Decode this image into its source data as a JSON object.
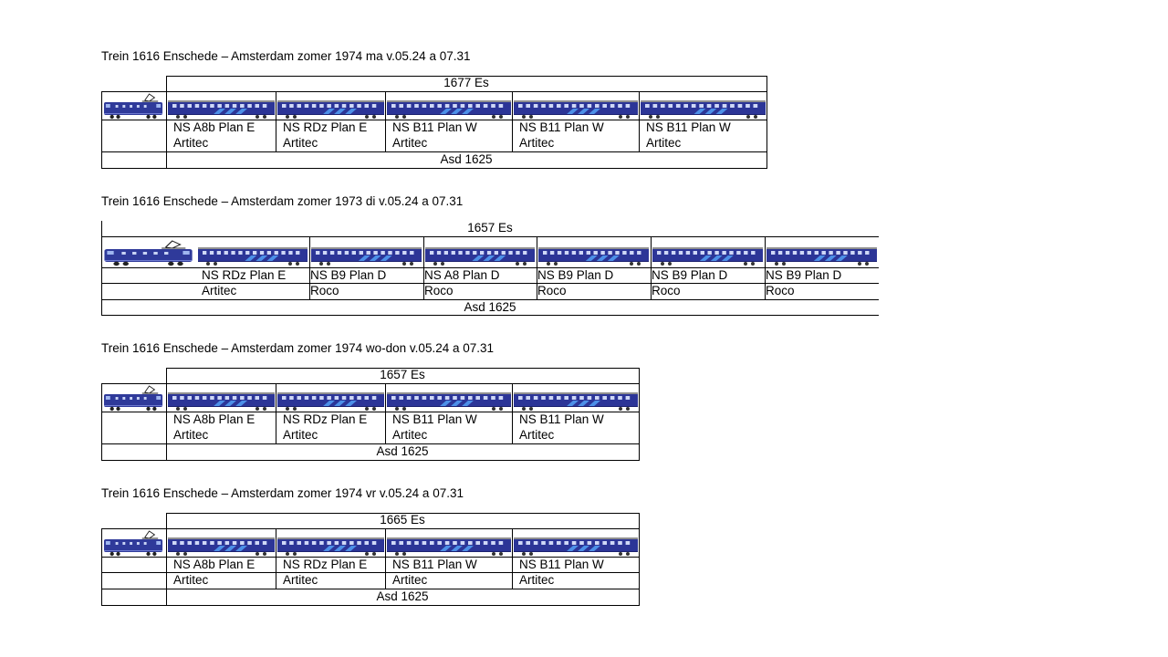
{
  "colors": {
    "loco_body": "#2f3a9a",
    "coach_body": "#2c3597",
    "coach_roof": "#8f8f8f",
    "stripe": "#4d90e8",
    "grid": "#000000"
  },
  "icons": {
    "locomotive": "electric-locomotive-icon",
    "coach": "passenger-coach-icon"
  },
  "consists": [
    {
      "title": "Trein 1616 Enschede – Amsterdam zomer 1974 ma v.05.24 a 07.31",
      "top_label": "1677 Es",
      "bottom_label": "Asd 1625",
      "vehicles": [
        {
          "line1": "NS A8b Plan E",
          "line2": "Artitec"
        },
        {
          "line1": "NS RDz Plan E",
          "line2": "Artitec"
        },
        {
          "line1": "NS B11 Plan W",
          "line2": "Artitec"
        },
        {
          "line1": "NS B11 Plan W",
          "line2": "Artitec"
        },
        {
          "line1": "NS B11 Plan W",
          "line2": "Artitec"
        }
      ]
    },
    {
      "title": "Trein 1616 Enschede – Amsterdam zomer 1973 di v.05.24 a 07.31",
      "top_label": "1657 Es",
      "bottom_label": "Asd 1625",
      "vehicles": [
        {
          "line1": "NS RDz Plan E",
          "line2": "Artitec"
        },
        {
          "line1": "NS B9 Plan D",
          "line2": "Roco"
        },
        {
          "line1": "NS A8 Plan D",
          "line2": "Roco"
        },
        {
          "line1": "NS B9 Plan D",
          "line2": "Roco"
        },
        {
          "line1": "NS B9 Plan D",
          "line2": "Roco"
        },
        {
          "line1": "NS B9 Plan D",
          "line2": "Roco"
        }
      ]
    },
    {
      "title": "Trein 1616 Enschede – Amsterdam zomer 1974 wo-don v.05.24 a 07.31",
      "top_label": "1657 Es",
      "bottom_label": "Asd 1625",
      "vehicles": [
        {
          "line1": "NS A8b Plan E",
          "line2": "Artitec"
        },
        {
          "line1": "NS RDz Plan E",
          "line2": "Artitec"
        },
        {
          "line1": "NS B11 Plan W",
          "line2": "Artitec"
        },
        {
          "line1": "NS B11 Plan W",
          "line2": "Artitec"
        }
      ]
    },
    {
      "title": "Trein 1616 Enschede – Amsterdam zomer 1974 vr v.05.24 a 07.31",
      "top_label": "1665 Es",
      "bottom_label": "Asd 1625",
      "vehicles": [
        {
          "line1": "NS A8b Plan E",
          "line2": "Artitec"
        },
        {
          "line1": "NS RDz Plan E",
          "line2": "Artitec"
        },
        {
          "line1": "NS B11 Plan W",
          "line2": "Artitec"
        },
        {
          "line1": "NS B11 Plan W",
          "line2": "Artitec"
        }
      ]
    }
  ]
}
